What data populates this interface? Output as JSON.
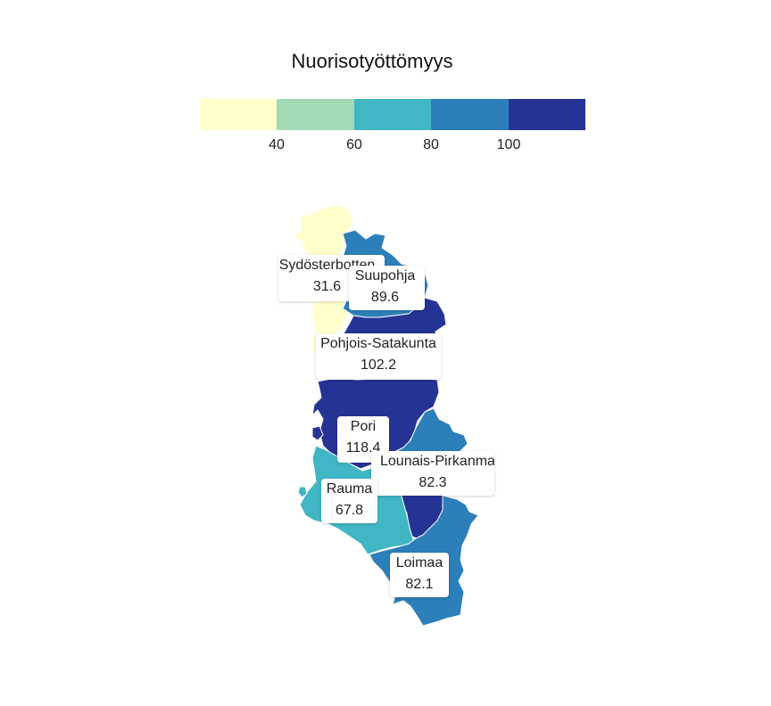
{
  "legend": {
    "title": "Nuorisotyöttömyys",
    "breaks": [
      "40",
      "60",
      "80",
      "100"
    ],
    "colors": [
      "#ffffcc",
      "#a1dab4",
      "#41b6c4",
      "#2c7fb8",
      "#253494"
    ]
  },
  "regions": [
    {
      "name": "Sydösterbotten",
      "value": "31.6",
      "fill": "#ffffcc"
    },
    {
      "name": "Suupohja",
      "value": "89.6",
      "fill": "#2c7fb8"
    },
    {
      "name": "Pohjois-Satakunta",
      "value": "102.2",
      "fill": "#253494"
    },
    {
      "name": "Pori",
      "value": "118.4",
      "fill": "#253494"
    },
    {
      "name": "Lounais-Pirkanmaa",
      "value": "82.3",
      "fill": "#2c7fb8"
    },
    {
      "name": "Rauma",
      "value": "67.8",
      "fill": "#41b6c4"
    },
    {
      "name": "Loimaa",
      "value": "82.1",
      "fill": "#2c7fb8"
    }
  ]
}
